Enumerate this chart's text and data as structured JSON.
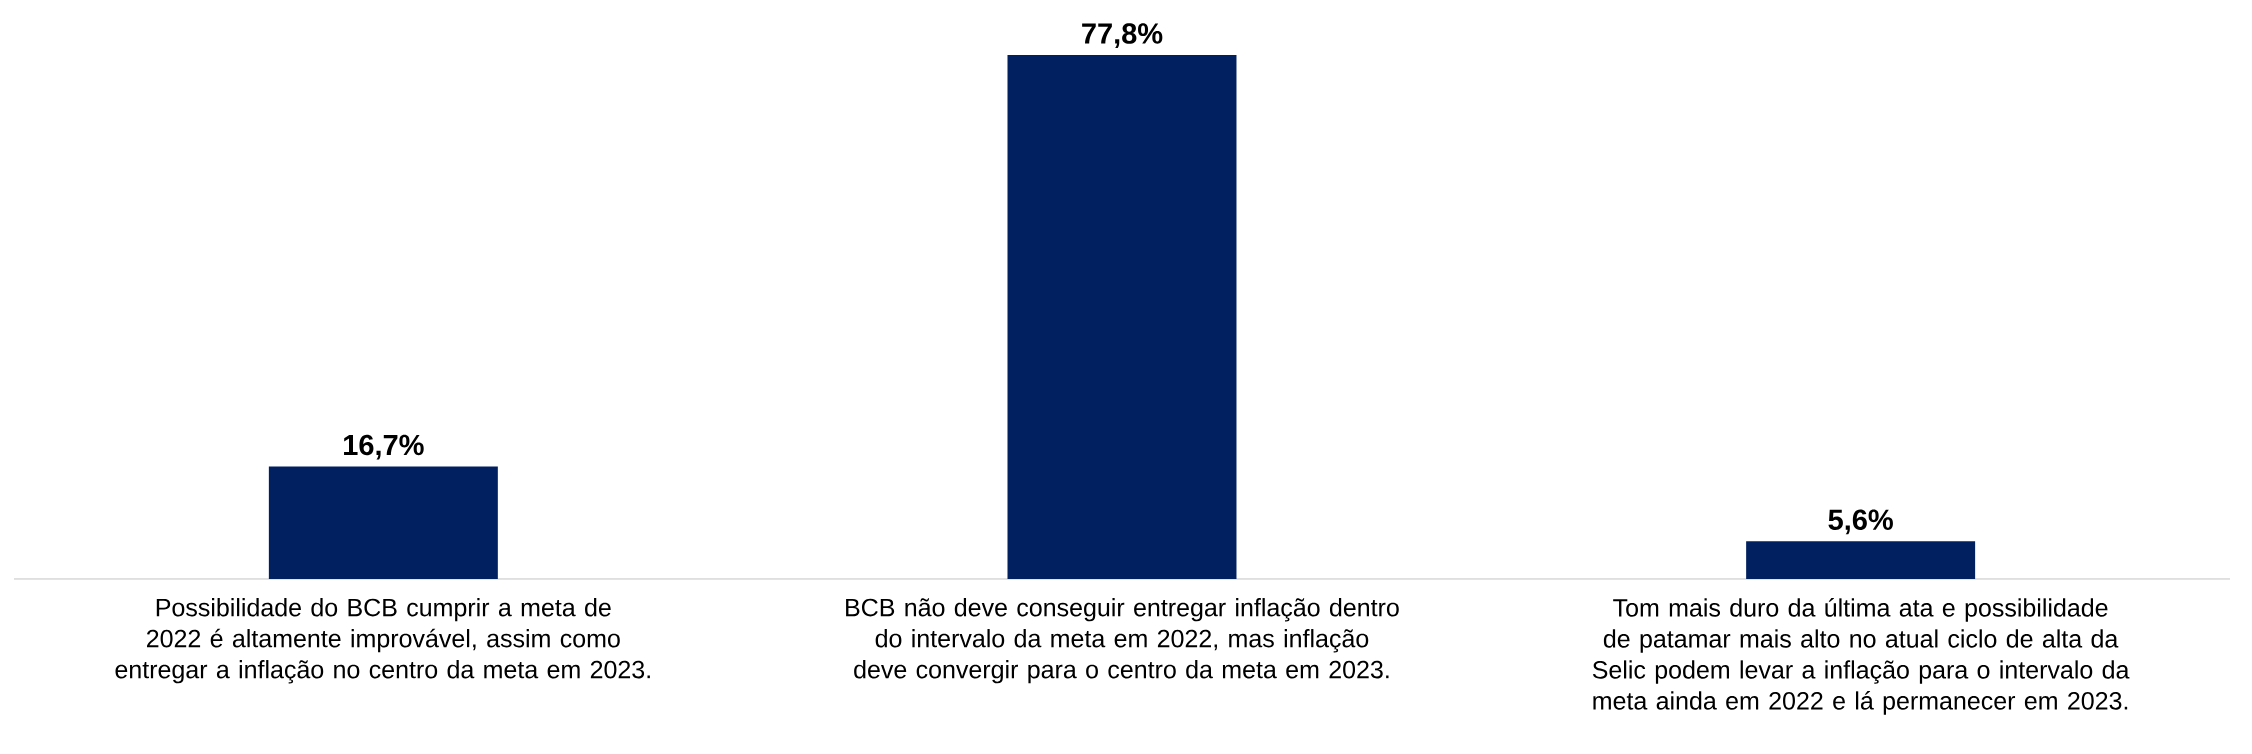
{
  "chart_data": {
    "type": "bar",
    "categories": [
      "Possibilidade do BCB cumprir a meta de 2022 é altamente improvável, assim como entregar a inflação no centro da meta em 2023.",
      "BCB não deve conseguir entregar inflação dentro do intervalo da meta em 2022, mas inflação deve convergir para o centro da meta em 2023.",
      "Tom mais duro da última ata e possibilidade de patamar mais alto no atual ciclo de alta da Selic podem levar a inflação para o intervalo da meta ainda em 2022 e lá permanecer em 2023."
    ],
    "values": [
      16.7,
      77.8,
      5.6
    ],
    "value_labels": [
      "16,7%",
      "77,8%",
      "5,6%"
    ],
    "color": "#002060"
  }
}
